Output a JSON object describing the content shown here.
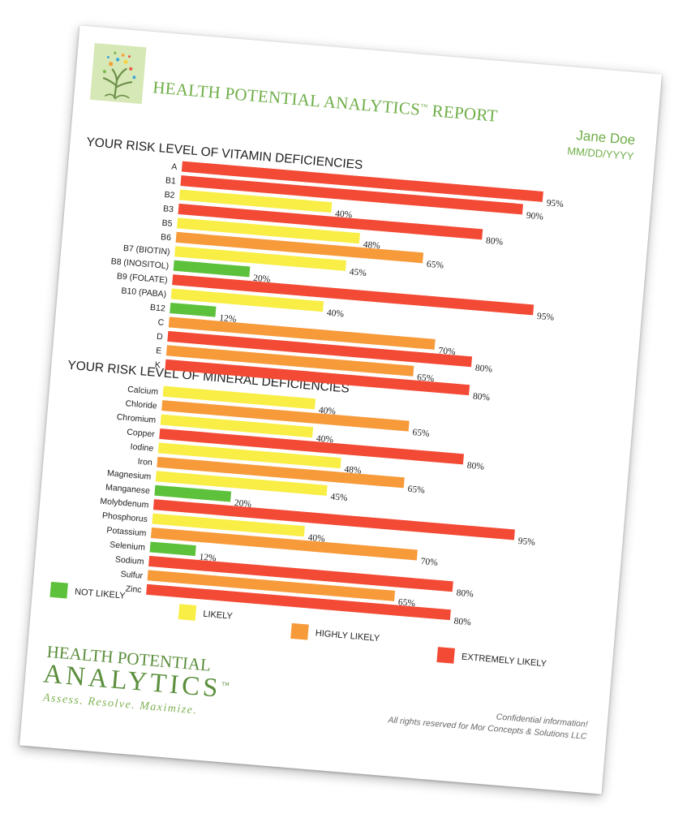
{
  "header": {
    "title": "HEALTH POTENTIAL ANALYTICS",
    "title_mark": "™",
    "title_suffix": "REPORT",
    "patient_name": "Jane Doe",
    "date": "MM/DD/YYYY"
  },
  "colors": {
    "not_likely": "#5dc13b",
    "likely": "#f8ee45",
    "highly_likely": "#f79a3a",
    "extremely_likely": "#f24a35",
    "brand_green": "#6fae48"
  },
  "chart_data": [
    {
      "type": "bar",
      "orientation": "horizontal",
      "title": "YOUR RISK LEVEL OF VITAMIN DEFICIENCIES",
      "categories": [
        "A",
        "B1",
        "B2",
        "B3",
        "B5",
        "B6",
        "B7 (BIOTIN)",
        "B8 (INOSITOL)",
        "B9 (FOLATE)",
        "B10 (PABA)",
        "B12",
        "C",
        "D",
        "E",
        "K"
      ],
      "values": [
        95,
        90,
        40,
        80,
        48,
        65,
        45,
        20,
        95,
        40,
        12,
        70,
        80,
        65,
        80
      ],
      "levels": [
        "extremely_likely",
        "extremely_likely",
        "likely",
        "extremely_likely",
        "likely",
        "highly_likely",
        "likely",
        "not_likely",
        "extremely_likely",
        "likely",
        "not_likely",
        "highly_likely",
        "extremely_likely",
        "highly_likely",
        "extremely_likely"
      ],
      "value_suffix": "%",
      "xlim": [
        0,
        100
      ]
    },
    {
      "type": "bar",
      "orientation": "horizontal",
      "title": "YOUR RISK LEVEL OF MINERAL DEFICIENCIES",
      "categories": [
        "Calcium",
        "Chloride",
        "Chromium",
        "Copper",
        "Iodine",
        "Iron",
        "Magnesium",
        "Manganese",
        "Molybdenum",
        "Phosphorus",
        "Potassium",
        "Selenium",
        "Sodium",
        "Sulfur",
        "Zinc"
      ],
      "values": [
        40,
        65,
        40,
        80,
        48,
        65,
        45,
        20,
        95,
        40,
        70,
        12,
        80,
        65,
        80
      ],
      "levels": [
        "likely",
        "highly_likely",
        "likely",
        "extremely_likely",
        "likely",
        "highly_likely",
        "likely",
        "not_likely",
        "extremely_likely",
        "likely",
        "highly_likely",
        "not_likely",
        "extremely_likely",
        "highly_likely",
        "extremely_likely"
      ],
      "value_suffix": "%",
      "xlim": [
        0,
        100
      ]
    }
  ],
  "legend": [
    {
      "label": "NOT LIKELY",
      "level": "not_likely"
    },
    {
      "label": "LIKELY",
      "level": "likely"
    },
    {
      "label": "HIGHLY LIKELY",
      "level": "highly_likely"
    },
    {
      "label": "EXTREMELY LIKELY",
      "level": "extremely_likely"
    }
  ],
  "brand": {
    "line1": "HEALTH POTENTIAL",
    "line2": "ANALYTICS",
    "mark": "™",
    "tagline": "Assess. Resolve. Maximize."
  },
  "footer": {
    "line1": "Confidential information!",
    "line2": "All rights reserved for Mor Concepts & Solutions LLC"
  }
}
